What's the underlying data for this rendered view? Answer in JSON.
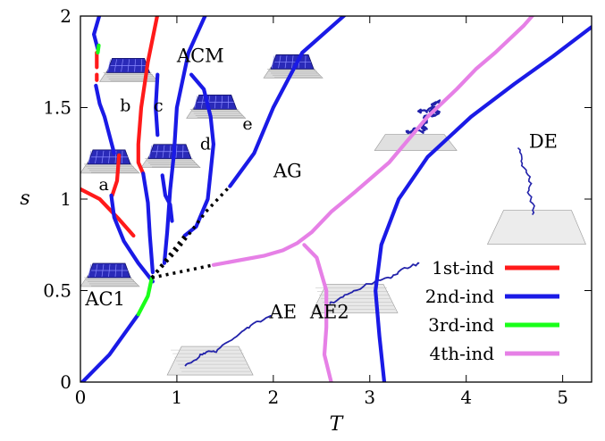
{
  "chart_data": {
    "type": "line",
    "title": "",
    "xlabel": "T",
    "ylabel": "s",
    "xlim": [
      0,
      5.3
    ],
    "ylim": [
      0,
      2
    ],
    "x_ticks": [
      0,
      1,
      2,
      3,
      4,
      5
    ],
    "y_ticks": [
      0,
      0.5,
      1,
      1.5,
      2
    ],
    "x_tick_labels": [
      "0",
      "1",
      "2",
      "3",
      "4",
      "5"
    ],
    "y_tick_labels": [
      "0",
      "0.5",
      "1",
      "1.5",
      "2"
    ],
    "grid": false,
    "legend_position": "bottom-right",
    "legend": [
      {
        "label": "1st-ind",
        "color": "#ff1a1a"
      },
      {
        "label": "2nd-ind",
        "color": "#1a1ae6"
      },
      {
        "label": "3rd-ind",
        "color": "#1aff1a"
      },
      {
        "label": "4th-ind",
        "color": "#e680e6"
      }
    ],
    "region_labels": [
      {
        "text": "ACM",
        "x": 1.0,
        "y": 1.75
      },
      {
        "text": "AG",
        "x": 2.0,
        "y": 1.12
      },
      {
        "text": "DE",
        "x": 4.65,
        "y": 1.28
      },
      {
        "text": "AC1",
        "x": 0.05,
        "y": 0.42
      },
      {
        "text": "AE",
        "x": 1.96,
        "y": 0.35
      },
      {
        "text": "AE2",
        "x": 2.38,
        "y": 0.35
      }
    ],
    "branch_labels": [
      {
        "text": "a",
        "x": 0.19,
        "y": 1.05
      },
      {
        "text": "b",
        "x": 0.41,
        "y": 1.48
      },
      {
        "text": "c",
        "x": 0.76,
        "y": 1.48
      },
      {
        "text": "d",
        "x": 1.24,
        "y": 1.27
      },
      {
        "text": "e",
        "x": 1.68,
        "y": 1.38
      }
    ],
    "series": [
      {
        "order": "1st",
        "color": "#ff1a1a",
        "points": [
          [
            -0.02,
            1.06
          ],
          [
            0.2,
            1.0
          ],
          [
            0.4,
            0.89
          ],
          [
            0.55,
            0.8
          ]
        ]
      },
      {
        "order": "1st",
        "color": "#ff1a1a",
        "points": [
          [
            0.17,
            1.65
          ],
          [
            0.17,
            1.68
          ]
        ]
      },
      {
        "order": "1st",
        "color": "#ff1a1a",
        "points": [
          [
            0.17,
            1.8
          ],
          [
            0.17,
            1.72
          ]
        ]
      },
      {
        "order": "1st",
        "color": "#ff1a1a",
        "points": [
          [
            0.4,
            1.24
          ],
          [
            0.38,
            1.1
          ],
          [
            0.33,
            1.02
          ]
        ]
      },
      {
        "order": "1st",
        "color": "#ff1a1a",
        "points": [
          [
            0.8,
            2.01
          ],
          [
            0.7,
            1.75
          ],
          [
            0.63,
            1.5
          ],
          [
            0.6,
            1.3
          ],
          [
            0.6,
            1.2
          ],
          [
            0.65,
            1.14
          ]
        ]
      },
      {
        "order": "2nd",
        "color": "#1a1ae6",
        "points": [
          [
            0.02,
            0.0
          ],
          [
            0.3,
            0.15
          ],
          [
            0.6,
            0.37
          ]
        ]
      },
      {
        "order": "2nd",
        "color": "#1a1ae6",
        "points": [
          [
            0.2,
            2.01
          ],
          [
            0.14,
            1.9
          ],
          [
            0.18,
            1.82
          ]
        ]
      },
      {
        "order": "2nd",
        "color": "#1a1ae6",
        "points": [
          [
            0.16,
            1.62
          ],
          [
            0.2,
            1.52
          ],
          [
            0.25,
            1.45
          ],
          [
            0.3,
            1.35
          ],
          [
            0.35,
            1.25
          ]
        ]
      },
      {
        "order": "2nd",
        "color": "#1a1ae6",
        "points": [
          [
            0.32,
            1.02
          ],
          [
            0.35,
            0.9
          ],
          [
            0.45,
            0.77
          ],
          [
            0.6,
            0.65
          ],
          [
            0.75,
            0.55
          ]
        ]
      },
      {
        "order": "2nd",
        "color": "#1a1ae6",
        "points": [
          [
            0.65,
            1.14
          ],
          [
            0.7,
            0.98
          ],
          [
            0.72,
            0.8
          ],
          [
            0.75,
            0.6
          ]
        ]
      },
      {
        "order": "2nd",
        "color": "#1a1ae6",
        "points": [
          [
            0.85,
            1.13
          ],
          [
            0.88,
            1.02
          ],
          [
            0.93,
            0.97
          ],
          [
            0.95,
            0.88
          ]
        ]
      },
      {
        "order": "2nd",
        "color": "#1a1ae6",
        "points": [
          [
            0.8,
            1.68
          ],
          [
            0.78,
            1.5
          ],
          [
            0.8,
            1.35
          ]
        ]
      },
      {
        "order": "2nd",
        "color": "#1a1ae6",
        "points": [
          [
            1.3,
            2.01
          ],
          [
            1.12,
            1.8
          ],
          [
            1.0,
            1.5
          ],
          [
            0.97,
            1.25
          ],
          [
            0.93,
            1.05
          ],
          [
            0.9,
            0.82
          ],
          [
            0.87,
            0.65
          ]
        ]
      },
      {
        "order": "2nd",
        "color": "#1a1ae6",
        "points": [
          [
            1.15,
            1.68
          ],
          [
            1.28,
            1.6
          ],
          [
            1.35,
            1.45
          ],
          [
            1.38,
            1.3
          ],
          [
            1.35,
            1.15
          ],
          [
            1.32,
            1.0
          ],
          [
            1.2,
            0.85
          ],
          [
            1.08,
            0.8
          ]
        ]
      },
      {
        "order": "2nd",
        "color": "#1a1ae6",
        "points": [
          [
            2.75,
            2.01
          ],
          [
            2.3,
            1.8
          ],
          [
            2.0,
            1.5
          ],
          [
            1.8,
            1.25
          ],
          [
            1.55,
            1.07
          ]
        ]
      },
      {
        "order": "2nd",
        "color": "#1a1ae6",
        "points": [
          [
            3.15,
            0.0
          ],
          [
            3.1,
            0.25
          ],
          [
            3.06,
            0.5
          ],
          [
            3.12,
            0.75
          ],
          [
            3.3,
            1.0
          ],
          [
            3.6,
            1.23
          ],
          [
            4.05,
            1.45
          ],
          [
            4.5,
            1.63
          ],
          [
            4.9,
            1.78
          ],
          [
            5.3,
            1.94
          ]
        ]
      },
      {
        "order": "3rd",
        "color": "#1aff1a",
        "points": [
          [
            0.18,
            1.8
          ],
          [
            0.19,
            1.84
          ]
        ]
      },
      {
        "order": "3rd",
        "color": "#1aff1a",
        "points": [
          [
            0.6,
            0.37
          ],
          [
            0.7,
            0.47
          ],
          [
            0.74,
            0.57
          ]
        ]
      },
      {
        "order": "4th",
        "color": "#e680e6",
        "points": [
          [
            1.38,
            0.64
          ],
          [
            1.9,
            0.69
          ],
          [
            2.1,
            0.72
          ],
          [
            2.25,
            0.76
          ],
          [
            2.4,
            0.82
          ],
          [
            2.6,
            0.93
          ],
          [
            2.85,
            1.04
          ],
          [
            3.2,
            1.2
          ],
          [
            3.6,
            1.45
          ],
          [
            3.9,
            1.6
          ],
          [
            4.1,
            1.71
          ],
          [
            4.3,
            1.8
          ],
          [
            4.6,
            1.95
          ],
          [
            4.7,
            2.01
          ]
        ]
      },
      {
        "order": "4th",
        "color": "#e680e6",
        "points": [
          [
            2.32,
            0.75
          ],
          [
            2.45,
            0.68
          ],
          [
            2.55,
            0.5
          ],
          [
            2.55,
            0.3
          ],
          [
            2.53,
            0.15
          ],
          [
            2.6,
            0.0
          ]
        ]
      }
    ],
    "dotted_series": [
      {
        "color": "#000000",
        "points": [
          [
            0.74,
            0.57
          ],
          [
            1.38,
            0.64
          ]
        ]
      },
      {
        "color": "#000000",
        "points": [
          [
            0.74,
            0.57
          ],
          [
            1.08,
            0.8
          ]
        ]
      },
      {
        "color": "#000000",
        "points": [
          [
            0.74,
            0.57
          ],
          [
            1.0,
            0.72
          ],
          [
            1.3,
            0.93
          ],
          [
            1.55,
            1.07
          ]
        ]
      }
    ],
    "insets": [
      {
        "name": "dense-cluster-inset",
        "x": 0.0,
        "y": 1.22
      },
      {
        "name": "dense-cluster-inset",
        "x": 0.2,
        "y": 1.72
      },
      {
        "name": "dense-cluster-inset",
        "x": 0.63,
        "y": 1.25
      },
      {
        "name": "dense-cluster-inset",
        "x": 1.1,
        "y": 1.52
      },
      {
        "name": "dense-cluster-inset",
        "x": 1.9,
        "y": 1.74
      },
      {
        "name": "dense-cluster-inset",
        "x": 0.0,
        "y": 0.6
      },
      {
        "name": "globule-inset",
        "x": 3.05,
        "y": 1.48
      },
      {
        "name": "extended-chain-inset",
        "x": 2.4,
        "y": 0.72
      },
      {
        "name": "extended-chain-inset",
        "x": 0.9,
        "y": 0.38
      },
      {
        "name": "dilute-chain-inset",
        "x": 4.35,
        "y": 1.28
      }
    ]
  }
}
